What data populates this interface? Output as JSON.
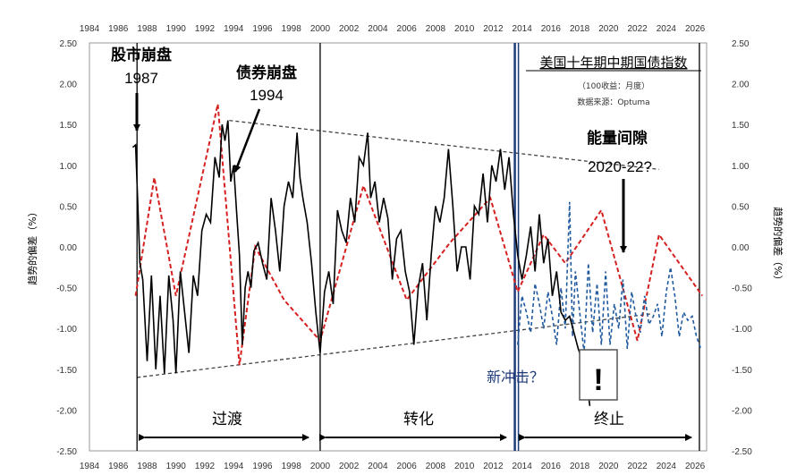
{
  "chart_data": {
    "type": "line",
    "title": "美国十年期中期国债指数",
    "subtitle": "（100收益：月度）",
    "source": "数据来源：Optuma",
    "ylabel_left": "趋势的偏差（%）",
    "ylabel_right": "趋势的偏差（%）",
    "xlim": [
      1984,
      2026.8
    ],
    "ylim": [
      -2.5,
      2.5
    ],
    "x_ticks": [
      "1984",
      "1986",
      "1988",
      "1990",
      "1992",
      "1994",
      "1996",
      "1998",
      "2000",
      "2002",
      "2004",
      "2006",
      "2008",
      "2010",
      "2012",
      "2014",
      "2016",
      "2018",
      "2020",
      "2022",
      "2024",
      "2026"
    ],
    "y_ticks_left": [
      "2.50",
      "2.00",
      "1.50",
      "1.00",
      "0.50",
      "0.00",
      "-0.50",
      "-1.00",
      "-1.50",
      "-2.00",
      "-2.50"
    ],
    "y_ticks_right": [
      "2.50",
      "2.00",
      "1.50",
      "1.00",
      "0.50",
      "0.00",
      "-0.50",
      "-1.00",
      "-1.50",
      "-2.00",
      "-2.50"
    ],
    "series": [
      {
        "name": "deviation",
        "color": "#000000",
        "style": "solid",
        "x": [
          1987.0,
          1987.2,
          1987.35,
          1987.5,
          1987.7,
          1988.0,
          1988.3,
          1988.6,
          1988.9,
          1989.2,
          1989.5,
          1989.8,
          1990.0,
          1990.3,
          1990.6,
          1990.9,
          1991.2,
          1991.5,
          1991.8,
          1992.1,
          1992.4,
          1992.7,
          1993.0,
          1993.2,
          1993.4,
          1993.6,
          1993.8,
          1994.0,
          1994.2,
          1994.4,
          1994.6,
          1994.8,
          1995.0,
          1995.2,
          1995.4,
          1995.7,
          1996.0,
          1996.3,
          1996.6,
          1996.9,
          1997.2,
          1997.5,
          1997.8,
          1998.1,
          1998.4,
          1998.6,
          1998.8,
          1999.1,
          1999.4,
          1999.7,
          2000.0,
          2000.3,
          2000.6,
          2000.9,
          2001.2,
          2001.5,
          2001.8,
          2002.1,
          2002.4,
          2002.7,
          2003.0,
          2003.3,
          2003.5,
          2003.8,
          2004.1,
          2004.4,
          2004.7,
          2005.0,
          2005.3,
          2005.6,
          2005.9,
          2006.2,
          2006.5,
          2006.8,
          2007.1,
          2007.4,
          2007.7,
          2008.0,
          2008.3,
          2008.6,
          2008.9,
          2009.2,
          2009.5,
          2009.8,
          2010.1,
          2010.4,
          2010.7,
          2011.0,
          2011.3,
          2011.6,
          2011.9,
          2012.2,
          2012.5,
          2012.8,
          2013.1,
          2013.4,
          2013.7,
          2014.0,
          2014.3,
          2014.6,
          2014.9,
          2015.2,
          2015.5,
          2015.8,
          2016.1,
          2016.4,
          2016.7,
          2017.0,
          2017.3,
          2017.6,
          2017.9,
          2018.2,
          2018.5,
          2018.7
        ],
        "values": [
          1.22,
          1.25,
          0.55,
          -0.2,
          -0.4,
          -1.4,
          -0.35,
          -1.5,
          -0.6,
          -1.55,
          -0.35,
          -0.9,
          -1.55,
          -0.3,
          -0.8,
          -1.3,
          -0.35,
          -0.6,
          0.2,
          0.4,
          0.3,
          1.1,
          0.85,
          1.5,
          1.3,
          1.55,
          0.8,
          1.0,
          0.45,
          -0.1,
          -1.2,
          -0.5,
          -0.3,
          -0.5,
          -0.05,
          0.05,
          -0.2,
          -0.4,
          0.6,
          0.2,
          -0.3,
          0.5,
          0.8,
          0.6,
          1.4,
          0.85,
          0.6,
          0.3,
          -0.2,
          -0.8,
          -1.3,
          -0.55,
          -0.3,
          -0.7,
          0.45,
          0.2,
          0.05,
          0.6,
          0.3,
          1.1,
          1.0,
          1.4,
          0.6,
          0.8,
          0.3,
          0.6,
          0.35,
          -0.4,
          0.1,
          0.2,
          -0.3,
          -0.55,
          -1.2,
          -0.5,
          -0.2,
          -0.9,
          -0.1,
          0.5,
          0.3,
          0.6,
          1.2,
          0.5,
          -0.3,
          0.0,
          0.0,
          -0.4,
          0.5,
          0.4,
          0.9,
          0.3,
          1.0,
          0.8,
          1.2,
          0.7,
          1.1,
          0.4,
          -0.1,
          -0.4,
          -0.1,
          0.25,
          -0.3,
          0.4,
          -0.2,
          0.1,
          -0.6,
          -0.3,
          -0.8,
          -0.9,
          -0.85,
          -1.05,
          -1.25,
          -1.4,
          -1.65,
          -1.95
        ]
      },
      {
        "name": "cycle",
        "color": "#d62020",
        "style": "dashed",
        "x": [
          1987.2,
          1988.5,
          1990.0,
          1992.9,
          1994.4,
          1995.5,
          1997.5,
          2000.0,
          2003.0,
          2006.0,
          2009.0,
          2011.8,
          2013.7,
          2015.5,
          2017.0,
          2019.5,
          2022.0,
          2023.5,
          2026.5
        ],
        "values": [
          -0.6,
          0.85,
          -0.6,
          1.75,
          -1.45,
          0.0,
          -0.65,
          -1.15,
          0.75,
          -0.65,
          0.05,
          0.6,
          -0.55,
          0.15,
          -0.2,
          0.45,
          -1.15,
          0.15,
          -0.6
        ]
      },
      {
        "name": "projection",
        "color": "#1f5a9e",
        "style": "dashed",
        "x": [
          2013.7,
          2014.0,
          2014.3,
          2014.6,
          2014.9,
          2015.2,
          2015.5,
          2015.8,
          2016.1,
          2016.4,
          2016.7,
          2017.0,
          2017.3,
          2017.5,
          2017.7,
          2018.0,
          2018.3,
          2018.6,
          2018.9,
          2019.2,
          2019.5,
          2019.8,
          2020.1,
          2020.4,
          2020.7,
          2021.0,
          2021.3,
          2021.6,
          2021.9,
          2022.2,
          2022.5,
          2022.8,
          2023.1,
          2023.4,
          2023.7,
          2024.0,
          2024.3,
          2024.6,
          2024.9,
          2025.2,
          2025.5,
          2025.8,
          2026.1,
          2026.4
        ],
        "values": [
          -1.2,
          -0.6,
          -0.8,
          -1.05,
          -0.45,
          -0.7,
          -1.0,
          -0.55,
          -0.85,
          -1.2,
          -0.5,
          -1.0,
          0.55,
          -1.1,
          -0.3,
          -0.8,
          -1.3,
          -0.2,
          -1.05,
          -0.45,
          -1.2,
          -0.3,
          -1.2,
          -0.7,
          -1.0,
          -0.4,
          -1.25,
          -0.55,
          -0.85,
          -1.05,
          -0.6,
          -0.95,
          -0.85,
          -0.7,
          -1.1,
          -0.55,
          -0.25,
          -0.6,
          -1.1,
          -0.8,
          -0.9,
          -0.85,
          -1.1,
          -1.25
        ]
      }
    ],
    "trend_lines": [
      {
        "name": "upper-trend",
        "from": [
          1993.7,
          1.55
        ],
        "to": [
          2023.5,
          0.95
        ]
      },
      {
        "name": "lower-trend",
        "from": [
          1987.3,
          -1.6
        ],
        "to": [
          2023.0,
          -0.82
        ]
      }
    ],
    "vertical_lines": [
      {
        "name": "crash-1987-line",
        "x": 1987.3,
        "color": "#000000"
      },
      {
        "name": "transition-2000-line",
        "x": 2000.0,
        "color": "#000000"
      },
      {
        "name": "shock-2013-line",
        "x": 2013.5,
        "color": "#1f3b7a"
      },
      {
        "name": "end-2026-line",
        "x": 2026.3,
        "color": "#000000"
      }
    ],
    "annotations": {
      "stock_crash": "股市崩盘",
      "stock_crash_year": "1987",
      "bond_crash": "债券崩盘",
      "bond_crash_year": "1994",
      "energy_gap": "能量间隙",
      "energy_gap_years": "2020-22?",
      "new_shock": "新冲击？",
      "alert": "!"
    },
    "periods": [
      "过渡",
      "转化",
      "终止"
    ]
  }
}
